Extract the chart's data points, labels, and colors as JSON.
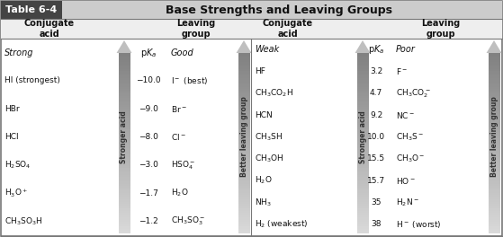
{
  "title_box": "Table 6-4",
  "title_text": "Base Strengths and Leaving Groups",
  "col_header_left_acid": "Conjugate\nacid",
  "col_header_left_leaving": "Leaving\ngroup",
  "col_header_right_acid": "Conjugate\nacid",
  "col_header_right_leaving": "Leaving\ngroup",
  "left_cat": "Strong",
  "right_cat": "Weak",
  "left_pka_header": "pK_a",
  "right_pka_header": "pK_a",
  "left_good": "Good",
  "right_poor": "Poor",
  "left_acids": [
    "HI (strongest)",
    "HBr",
    "HCl",
    "H$_2$SO$_4$",
    "H$_3$O$^+$",
    "CH$_3$SO$_3$H"
  ],
  "left_pka_values": [
    "−10.0",
    "−9.0",
    "−8.0",
    "−3.0",
    "−1.7",
    "−1.2"
  ],
  "left_leaving": [
    "I$^-$ (best)",
    "Br$^-$",
    "Cl$^-$",
    "HSO$_4^-$",
    "H$_2$O",
    "CH$_3$SO$_3^-$"
  ],
  "right_acids": [
    "HF",
    "CH$_3$CO$_2$H",
    "HCN",
    "CH$_3$SH",
    "CH$_3$OH",
    "H$_2$O",
    "NH$_3$",
    "H$_2$ (weakest)"
  ],
  "right_pka_values": [
    "3.2",
    "4.7",
    "9.2",
    "10.0",
    "15.5",
    "15.7",
    "35",
    "38"
  ],
  "right_leaving": [
    "F$^-$",
    "CH$_3$CO$_2^-$",
    "NC$^-$",
    "CH$_3$S$^-$",
    "CH$_3$O$^-$",
    "HO$^-$",
    "H$_2$N$^-$",
    "H$^-$ (worst)"
  ],
  "stronger_acid_label": "Stronger acid",
  "better_leaving_label": "Better leaving group",
  "arrow_color_light": "#d0d0d0",
  "arrow_color_dark": "#909090",
  "title_box_bg": "#444444",
  "title_bar_bg": "#cccccc",
  "header_row_bg": "#eeeeee",
  "border_color": "#777777",
  "text_color": "#111111",
  "bg_color": "#ffffff"
}
